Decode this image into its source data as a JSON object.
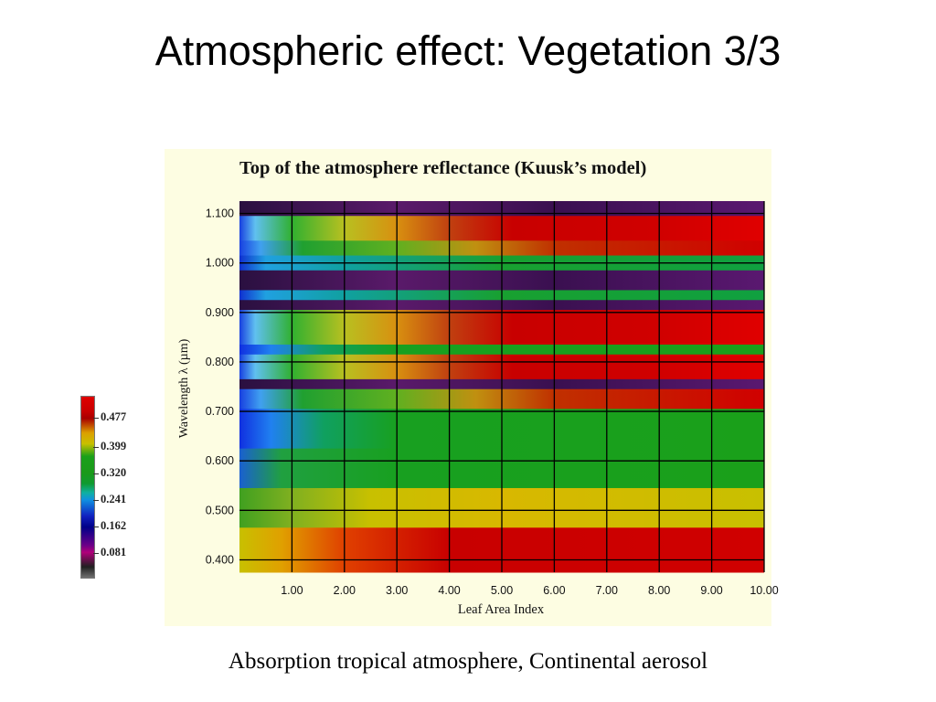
{
  "slide": {
    "title": "Atmospheric effect: Vegetation 3/3",
    "caption": "Absorption tropical atmosphere, Continental aerosol"
  },
  "chart_data": {
    "type": "heatmap",
    "title": "Top of the atmosphere reflectance (Kuusk’s model)",
    "xlabel": "Leaf Area Index",
    "ylabel": "Wavelength λ (µm)",
    "x_ticks": [
      "1.00",
      "2.00",
      "3.00",
      "4.00",
      "5.00",
      "6.00",
      "7.00",
      "8.00",
      "9.00",
      "10.00"
    ],
    "y_ticks": [
      "0.400",
      "0.500",
      "0.600",
      "0.700",
      "0.800",
      "0.900",
      "1.000",
      "1.100"
    ],
    "xlim": [
      0,
      10
    ],
    "ylim": [
      0.375,
      1.125
    ],
    "colorbar": {
      "labels": [
        "0.477",
        "0.399",
        "0.320",
        "0.241",
        "0.162",
        "0.081"
      ],
      "colors": [
        "#e00000",
        "#c80000",
        "#a80000",
        "#dca000",
        "#1aa01a",
        "#10b0a0",
        "#1090e0",
        "#1020c0",
        "#000088",
        "#6a0088",
        "#b0007a",
        "#202020",
        "#707070"
      ]
    },
    "bands": [
      {
        "from": 1.095,
        "to": 1.125,
        "pattern": "absorption"
      },
      {
        "from": 1.045,
        "to": 1.095,
        "pattern": "nir-high"
      },
      {
        "from": 1.015,
        "to": 1.045,
        "pattern": "nir-mid"
      },
      {
        "from": 0.985,
        "to": 1.015,
        "pattern": "cyan-green"
      },
      {
        "from": 0.945,
        "to": 0.985,
        "pattern": "absorption"
      },
      {
        "from": 0.925,
        "to": 0.945,
        "pattern": "cyan-green"
      },
      {
        "from": 0.905,
        "to": 0.925,
        "pattern": "absorption"
      },
      {
        "from": 0.835,
        "to": 0.905,
        "pattern": "nir-high"
      },
      {
        "from": 0.815,
        "to": 0.835,
        "pattern": "green-band"
      },
      {
        "from": 0.765,
        "to": 0.815,
        "pattern": "nir-high"
      },
      {
        "from": 0.745,
        "to": 0.765,
        "pattern": "absorption"
      },
      {
        "from": 0.705,
        "to": 0.745,
        "pattern": "nir-mid"
      },
      {
        "from": 0.625,
        "to": 0.705,
        "pattern": "green-band"
      },
      {
        "from": 0.545,
        "to": 0.625,
        "pattern": "visible-green"
      },
      {
        "from": 0.465,
        "to": 0.545,
        "pattern": "visible-yellow"
      },
      {
        "from": 0.375,
        "to": 0.465,
        "pattern": "visible-red"
      }
    ]
  }
}
